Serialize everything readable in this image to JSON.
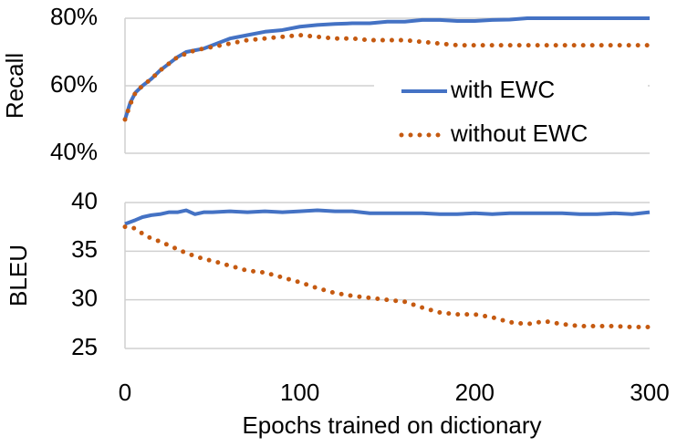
{
  "chart_data": [
    {
      "type": "line",
      "ylabel": "Recall",
      "legend": "right",
      "grid": true,
      "xlim": [
        0,
        300
      ],
      "ylim": [
        40,
        80
      ],
      "yticks": [
        {
          "value": 40,
          "label": "40%"
        },
        {
          "value": 60,
          "label": "60%"
        },
        {
          "value": 80,
          "label": "80%"
        }
      ],
      "x": [
        0,
        3,
        6,
        10,
        15,
        20,
        25,
        30,
        35,
        40,
        45,
        50,
        60,
        70,
        80,
        90,
        100,
        110,
        120,
        130,
        140,
        150,
        160,
        170,
        180,
        190,
        200,
        210,
        220,
        230,
        240,
        250,
        260,
        270,
        280,
        290,
        300
      ],
      "series": [
        {
          "name": "with EWC",
          "color": "#4472c4",
          "style": "solid",
          "values": [
            50,
            55,
            58,
            60,
            62,
            64.5,
            66.5,
            68.5,
            70,
            70.5,
            71,
            72,
            74,
            75,
            76,
            76.5,
            77.5,
            78,
            78.3,
            78.5,
            78.5,
            79,
            79,
            79.5,
            79.5,
            79.2,
            79.2,
            79.5,
            79.6,
            80,
            80,
            80,
            80,
            80,
            80,
            80,
            80
          ]
        },
        {
          "name": "without EWC",
          "color": "#c55a11",
          "style": "dotted",
          "values": [
            50,
            54.5,
            58,
            60,
            62,
            64.5,
            66.5,
            68.5,
            69.5,
            70.5,
            71,
            71.5,
            72.5,
            73.5,
            74,
            74.5,
            75,
            74.5,
            74,
            74,
            73.5,
            73.5,
            73.5,
            73,
            72.5,
            72,
            72,
            72,
            72,
            72,
            72,
            72,
            72,
            72,
            72,
            72,
            72
          ]
        }
      ]
    },
    {
      "type": "line",
      "ylabel": "BLEU",
      "xlabel": "Epochs trained on dictionary",
      "grid": true,
      "xlim": [
        0,
        300
      ],
      "xticks": [
        0,
        100,
        200,
        300
      ],
      "ylim": [
        25,
        40
      ],
      "yticks": [
        25,
        30,
        35,
        40
      ],
      "x": [
        0,
        3,
        6,
        10,
        15,
        20,
        25,
        30,
        35,
        40,
        45,
        50,
        60,
        70,
        80,
        90,
        100,
        110,
        120,
        130,
        140,
        150,
        160,
        170,
        180,
        190,
        200,
        210,
        220,
        230,
        240,
        250,
        260,
        270,
        280,
        290,
        300
      ],
      "series": [
        {
          "color": "#4472c4",
          "style": "solid",
          "values": [
            37.8,
            38,
            38.2,
            38.5,
            38.7,
            38.8,
            39,
            39,
            39.2,
            38.8,
            39,
            39,
            39.1,
            39,
            39.1,
            39,
            39.1,
            39.2,
            39.1,
            39.1,
            38.9,
            38.9,
            38.9,
            38.9,
            38.8,
            38.8,
            38.9,
            38.8,
            38.9,
            38.9,
            38.9,
            38.9,
            38.8,
            38.8,
            38.9,
            38.8,
            39
          ]
        },
        {
          "color": "#c55a11",
          "style": "dotted",
          "values": [
            37.5,
            37.5,
            37.3,
            36.8,
            36.3,
            36,
            35.6,
            35.2,
            34.8,
            34.5,
            34.2,
            34,
            33.5,
            33,
            32.8,
            32.3,
            31.8,
            31.2,
            30.7,
            30.4,
            30.2,
            30,
            29.8,
            29.2,
            28.7,
            28.5,
            28.5,
            28.2,
            27.7,
            27.5,
            27.8,
            27.5,
            27.3,
            27.3,
            27.3,
            27.2,
            27.2
          ]
        }
      ]
    }
  ]
}
